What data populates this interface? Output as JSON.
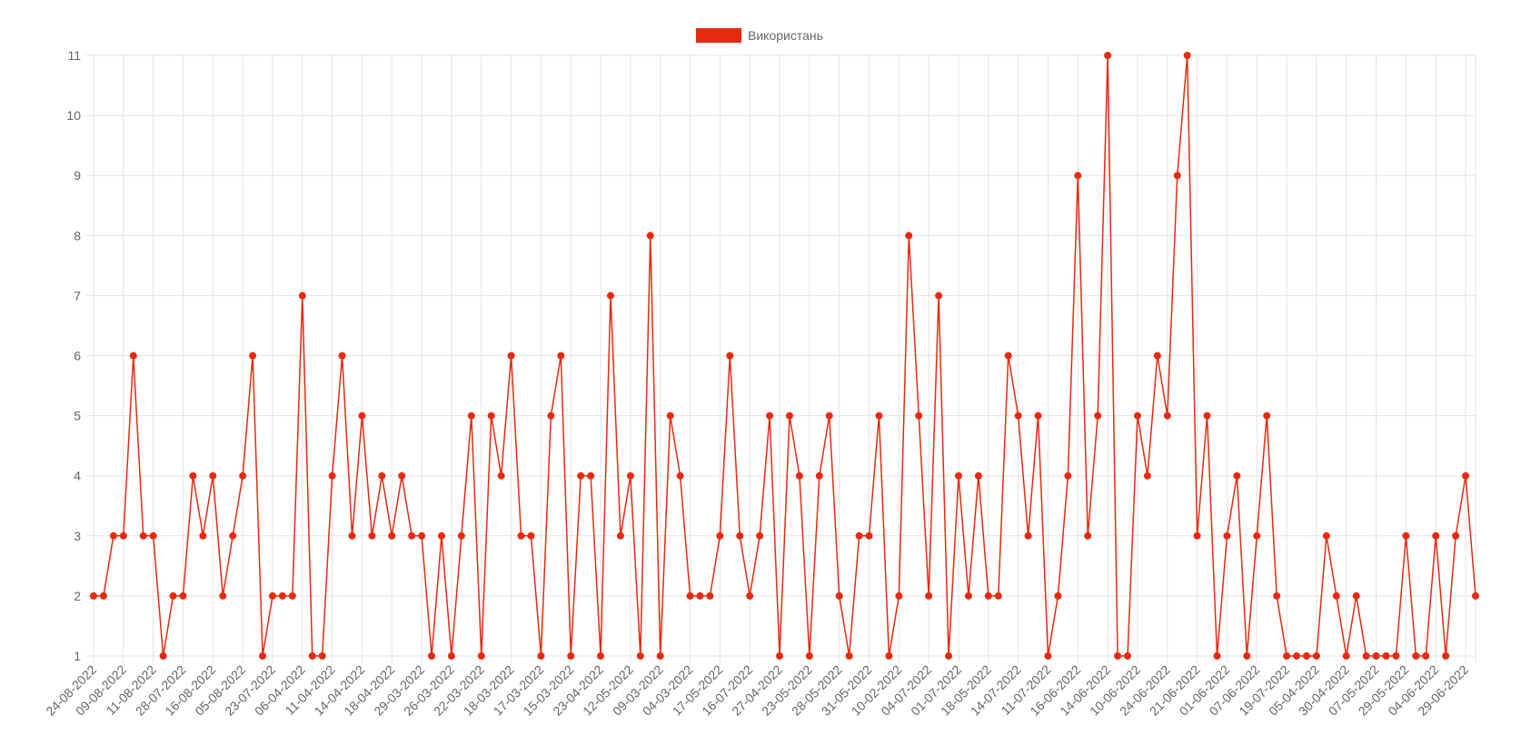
{
  "chart_data": {
    "type": "line",
    "series": [
      {
        "name": "Використань",
        "color": "#e8290f",
        "values": [
          2,
          2,
          3,
          3,
          6,
          3,
          3,
          1,
          2,
          2,
          4,
          3,
          4,
          2,
          3,
          4,
          6,
          1,
          2,
          2,
          2,
          7,
          1,
          1,
          4,
          6,
          3,
          5,
          3,
          4,
          3,
          4,
          3,
          3,
          1,
          3,
          1,
          3,
          5,
          1,
          5,
          4,
          6,
          3,
          3,
          1,
          5,
          6,
          1,
          4,
          4,
          1,
          7,
          3,
          4,
          1,
          8,
          1,
          5,
          4,
          2,
          2,
          2,
          3,
          6,
          3,
          2,
          3,
          5,
          1,
          5,
          4,
          1,
          4,
          5,
          2,
          1,
          3,
          3,
          5,
          1,
          2,
          8,
          5,
          2,
          7,
          1,
          4,
          2,
          4,
          2,
          2,
          6,
          5,
          3,
          5,
          1,
          2,
          4,
          9,
          3,
          5,
          11,
          1,
          1,
          5,
          4,
          6,
          5,
          9,
          11,
          3,
          5,
          1,
          3,
          4,
          1,
          3,
          5,
          2,
          1,
          1,
          1,
          1,
          3,
          2,
          1,
          2,
          1,
          1,
          1,
          1,
          3,
          1,
          1,
          3,
          1,
          3,
          4,
          2
        ]
      }
    ],
    "x_tick_labels": [
      "24-08-2022",
      "09-08-2022",
      "11-08-2022",
      "28-07-2022",
      "16-08-2022",
      "05-08-2022",
      "23-07-2022",
      "06-04-2022",
      "11-04-2022",
      "14-04-2022",
      "18-04-2022",
      "29-03-2022",
      "26-03-2022",
      "22-03-2022",
      "18-03-2022",
      "17-03-2022",
      "15-03-2022",
      "23-04-2022",
      "12-05-2022",
      "09-03-2022",
      "04-03-2022",
      "17-05-2022",
      "16-07-2022",
      "27-04-2022",
      "23-05-2022",
      "28-05-2022",
      "31-05-2022",
      "10-02-2022",
      "04-07-2022",
      "01-07-2022",
      "18-05-2022",
      "14-07-2022",
      "11-07-2022",
      "16-06-2022",
      "14-06-2022",
      "10-06-2022",
      "24-06-2022",
      "21-06-2022",
      "01-06-2022",
      "07-06-2022",
      "19-07-2022",
      "05-04-2022",
      "30-04-2022",
      "07-05-2022",
      "29-05-2022",
      "04-06-2022",
      "29-06-2022"
    ],
    "ylim": [
      1,
      11
    ],
    "y_ticks": [
      1,
      2,
      3,
      4,
      5,
      6,
      7,
      8,
      9,
      10,
      11
    ],
    "grid": true,
    "legend_position": "top"
  }
}
